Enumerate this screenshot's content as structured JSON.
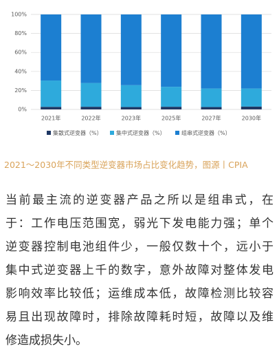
{
  "chart_data": {
    "type": "stacked-bar",
    "categories": [
      "2021年",
      "2022年",
      "2023年",
      "2025年",
      "2027年",
      "2030年"
    ],
    "series": [
      {
        "name": "集散式逆变器（%）",
        "color": "#1f3864",
        "values": [
          2.7,
          2.8,
          2.5,
          2.8,
          2.5,
          3
        ]
      },
      {
        "name": "集中式逆变器（%）",
        "color": "#2eaadc",
        "values": [
          27.7,
          25,
          23,
          21,
          19.5,
          19
        ]
      },
      {
        "name": "组串式逆变器（%）",
        "color": "#1c7fd1",
        "values": [
          69.6,
          72.2,
          74.5,
          76.2,
          78,
          78
        ]
      }
    ],
    "ylim": [
      0,
      100
    ],
    "yticks": [
      {
        "value": 0,
        "label": "0%"
      },
      {
        "value": 20,
        "label": "20%"
      },
      {
        "value": 40,
        "label": "40%"
      },
      {
        "value": 60,
        "label": "60%"
      },
      {
        "value": 80,
        "label": "80%"
      },
      {
        "value": 100,
        "label": "100%"
      }
    ],
    "grid": true
  },
  "caption": "2021～2030年不同类型逆变器市场占比变化趋势，图源丨CPIA",
  "body": {
    "lines": [
      "当前最主流的逆变器产品之所以是组串式，在",
      "于：工作电压范围宽，弱光下发电能力强；单个",
      "逆变器控制电池组件少，一般仅数十个，远小于",
      "集中式逆变器上千的数字，意外故障对整体发电",
      "影响效率比较低；运维成本低，故障检测比较容",
      "易且出现故障时，排除故障耗时短，故障以及维",
      "修造成损失小。"
    ]
  }
}
